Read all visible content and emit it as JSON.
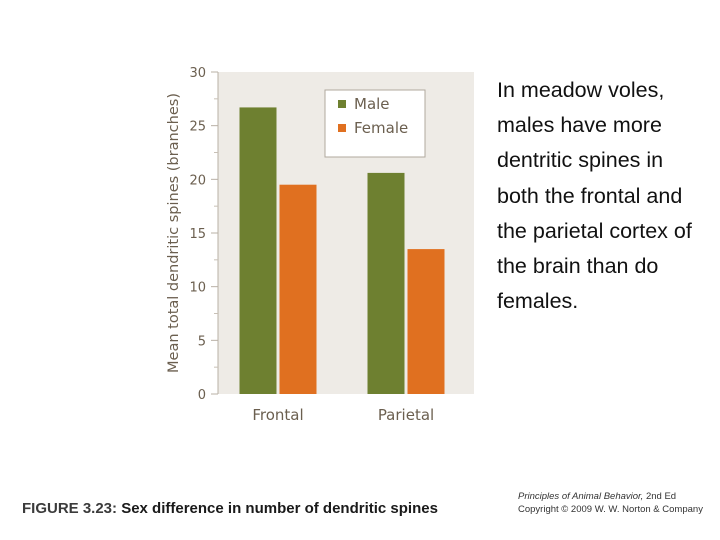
{
  "side_text": "In meadow voles, males have more dentritic spines in both the frontal and the parietal cortex of the brain than do females.",
  "caption": {
    "label": "FIGURE 3.23:",
    "text": " Sex difference in number of dendritic spines"
  },
  "credit": {
    "book_title": "Principles of Animal Behavior,",
    "edition": " 2nd Ed",
    "copyright": "Copyright © 2009 W. W. Norton & Company"
  },
  "chart_data": {
    "type": "bar",
    "categories": [
      "Frontal",
      "Parietal"
    ],
    "series": [
      {
        "name": "Male",
        "values": [
          26.7,
          20.6
        ],
        "color": "#6e8030"
      },
      {
        "name": "Female",
        "values": [
          19.5,
          13.5
        ],
        "color": "#e07020"
      }
    ],
    "ylabel": "Mean total dendritic spines (branches)",
    "xlabel": "",
    "ylim": [
      0,
      30
    ],
    "yticks": [
      "0",
      "5",
      "10",
      "15",
      "20",
      "25",
      "30"
    ],
    "minor_ticks": true,
    "grid": false,
    "legend_position": "top-right",
    "background_color": "#eeebe6"
  }
}
